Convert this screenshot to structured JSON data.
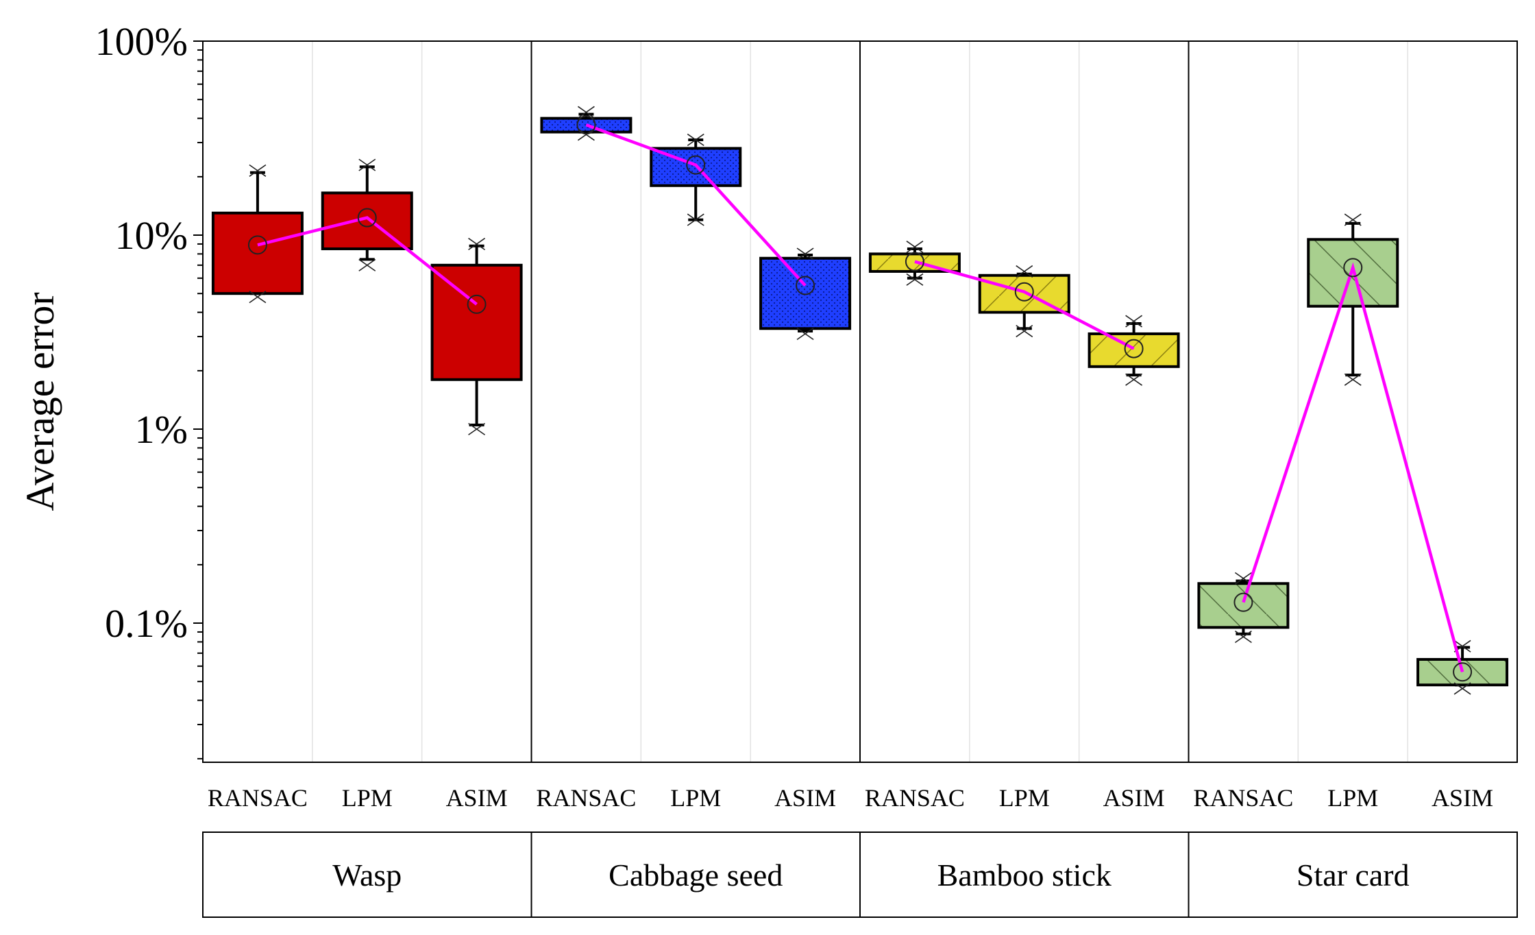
{
  "chart_data": {
    "type": "box",
    "ylabel": "Average error",
    "yscale": "log",
    "ylim": [
      0.02,
      100
    ],
    "yticks": [
      {
        "value": 100,
        "label": "100%"
      },
      {
        "value": 10,
        "label": "10%"
      },
      {
        "value": 1,
        "label": "1%"
      },
      {
        "value": 0.1,
        "label": "0.1%"
      }
    ],
    "methods": [
      "RANSAC",
      "LPM",
      "ASIM"
    ],
    "groups": [
      {
        "name": "Wasp",
        "color": "#cc0000",
        "fill_pattern": "solid",
        "boxes": [
          {
            "method": "RANSAC",
            "q1": 5.0,
            "q3": 13.0,
            "whisker_low": 5.0,
            "whisker_high": 21.0,
            "min_marker": 4.8,
            "max_marker": 21.5,
            "mean": 8.9
          },
          {
            "method": "LPM",
            "q1": 8.5,
            "q3": 16.5,
            "whisker_low": 7.5,
            "whisker_high": 22.5,
            "min_marker": 7.0,
            "max_marker": 23.0,
            "mean": 12.3
          },
          {
            "method": "ASIM",
            "q1": 1.8,
            "q3": 7.0,
            "whisker_low": 1.05,
            "whisker_high": 8.8,
            "min_marker": 1.0,
            "max_marker": 9.0,
            "mean": 4.4
          }
        ]
      },
      {
        "name": "Cabbage seed",
        "color": "#1f3fff",
        "fill_pattern": "dotted",
        "boxes": [
          {
            "method": "RANSAC",
            "q1": 34.0,
            "q3": 40.0,
            "whisker_low": 34.0,
            "whisker_high": 42.0,
            "min_marker": 33.0,
            "max_marker": 43.0,
            "mean": 37.0
          },
          {
            "method": "LPM",
            "q1": 18.0,
            "q3": 28.0,
            "whisker_low": 12.0,
            "whisker_high": 31.0,
            "min_marker": 12.0,
            "max_marker": 31.0,
            "mean": 23.0
          },
          {
            "method": "ASIM",
            "q1": 3.3,
            "q3": 7.6,
            "whisker_low": 3.2,
            "whisker_high": 7.9,
            "min_marker": 3.1,
            "max_marker": 8.0,
            "mean": 5.5
          }
        ]
      },
      {
        "name": "Bamboo stick",
        "color": "#e8da2e",
        "fill_pattern": "hatch",
        "boxes": [
          {
            "method": "RANSAC",
            "q1": 6.5,
            "q3": 8.0,
            "whisker_low": 6.0,
            "whisker_high": 8.5,
            "min_marker": 5.9,
            "max_marker": 8.7,
            "mean": 7.3
          },
          {
            "method": "LPM",
            "q1": 4.0,
            "q3": 6.2,
            "whisker_low": 3.3,
            "whisker_high": 6.3,
            "min_marker": 3.2,
            "max_marker": 6.5,
            "mean": 5.1
          },
          {
            "method": "ASIM",
            "q1": 2.1,
            "q3": 3.1,
            "whisker_low": 1.9,
            "whisker_high": 3.5,
            "min_marker": 1.8,
            "max_marker": 3.6,
            "mean": 2.6
          }
        ]
      },
      {
        "name": "Star card",
        "color": "#a8cf8e",
        "fill_pattern": "hatch",
        "boxes": [
          {
            "method": "RANSAC",
            "q1": 0.095,
            "q3": 0.16,
            "whisker_low": 0.088,
            "whisker_high": 0.165,
            "min_marker": 0.085,
            "max_marker": 0.17,
            "mean": 0.128
          },
          {
            "method": "LPM",
            "q1": 4.3,
            "q3": 9.5,
            "whisker_low": 1.9,
            "whisker_high": 11.5,
            "min_marker": 1.8,
            "max_marker": 12.0,
            "mean": 6.8
          },
          {
            "method": "ASIM",
            "q1": 0.048,
            "q3": 0.065,
            "whisker_low": 0.048,
            "whisker_high": 0.075,
            "min_marker": 0.046,
            "max_marker": 0.076,
            "mean": 0.056
          }
        ]
      }
    ],
    "mean_line_color": "#ff00ff"
  }
}
